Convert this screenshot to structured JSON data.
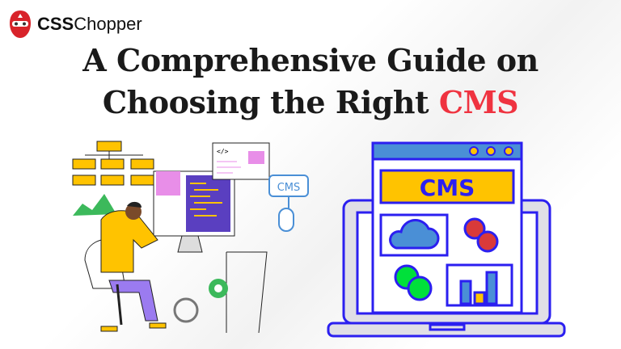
{
  "brand": {
    "name_bold": "CSS",
    "name_rest": "Chopper"
  },
  "headline": {
    "line1": "A Comprehensive Guide on",
    "line2_prefix": "Choosing the Right ",
    "line2_accent": "CMS"
  },
  "illustration": {
    "cms_label": "CMS",
    "cms_icon_label": "CMS",
    "code_tag": "</>"
  },
  "colors": {
    "accent": "#ef3340",
    "blue": "#2b1ff0",
    "yellow": "#ffc300",
    "panel_blue": "#4a8fd6"
  }
}
